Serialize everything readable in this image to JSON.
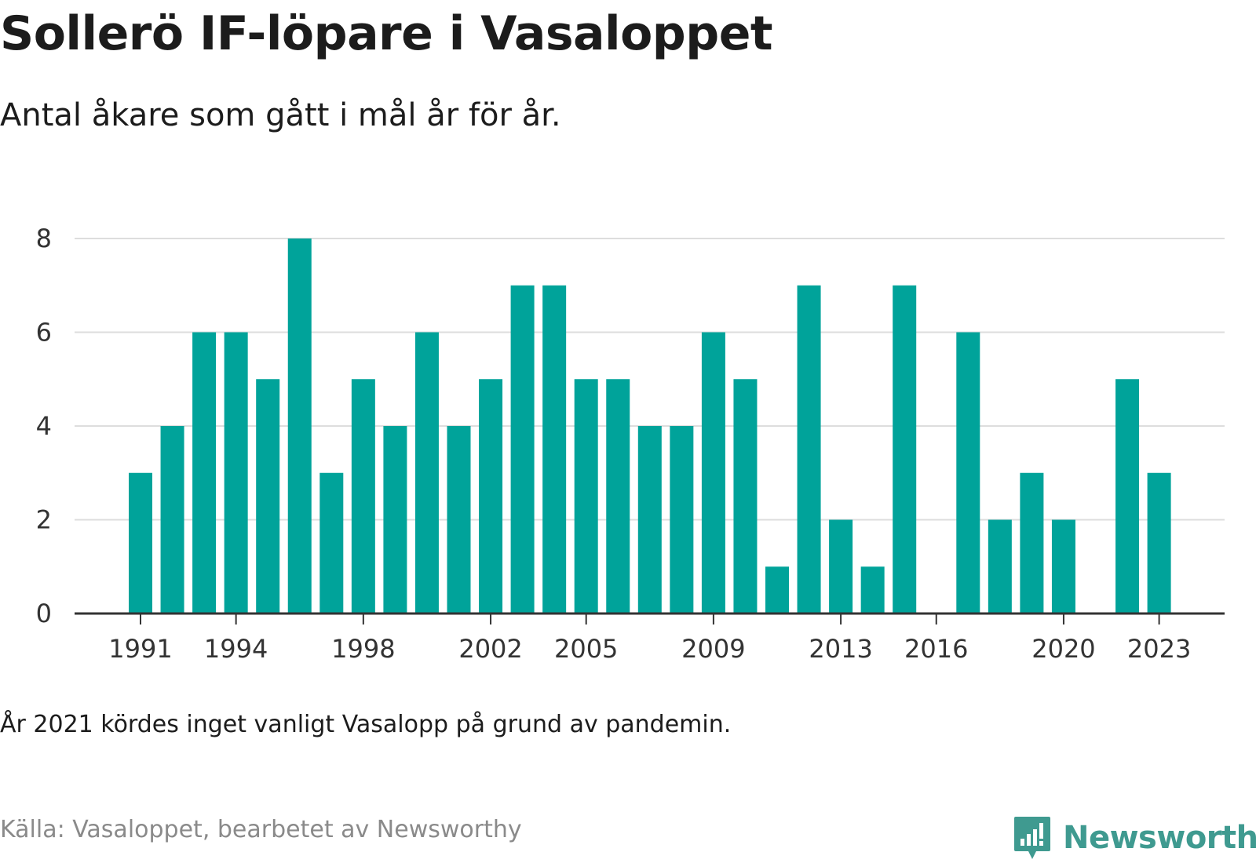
{
  "title": "Sollerö IF-löpare i Vasaloppet",
  "subtitle": "Antal åkare som gått i mål år för år.",
  "note": "År 2021 kördes inget vanligt Vasalopp på grund av pandemin.",
  "source": "Källa: Vasaloppet, bearbetet av Newsworthy",
  "brand": {
    "name": "Newsworthy",
    "icon": "newsworthy-logo-icon",
    "color": "#3f9a90"
  },
  "colors": {
    "bar": "#00a39a",
    "grid": "#dddddd",
    "axis": "#333333"
  },
  "chart_data": {
    "type": "bar",
    "title": "",
    "xlabel": "",
    "ylabel": "",
    "categories": [
      "1991",
      "1992",
      "1993",
      "1994",
      "1995",
      "1996",
      "1997",
      "1998",
      "1999",
      "2000",
      "2001",
      "2002",
      "2003",
      "2004",
      "2005",
      "2006",
      "2007",
      "2008",
      "2009",
      "2010",
      "2011",
      "2012",
      "2013",
      "2014",
      "2015",
      "2016",
      "2017",
      "2018",
      "2019",
      "2020",
      "2021",
      "2022",
      "2023"
    ],
    "values": [
      3,
      4,
      6,
      6,
      5,
      8,
      3,
      5,
      4,
      6,
      4,
      5,
      7,
      7,
      5,
      5,
      4,
      4,
      6,
      5,
      1,
      7,
      2,
      1,
      7,
      null,
      6,
      2,
      3,
      2,
      null,
      5,
      3
    ],
    "x_tick_labels": [
      "1991",
      "1994",
      "1998",
      "2002",
      "2005",
      "2009",
      "2013",
      "2016",
      "2020",
      "2023"
    ],
    "y_ticks": [
      0,
      2,
      4,
      6,
      8
    ],
    "ylim": [
      0,
      8
    ],
    "grid": true
  }
}
